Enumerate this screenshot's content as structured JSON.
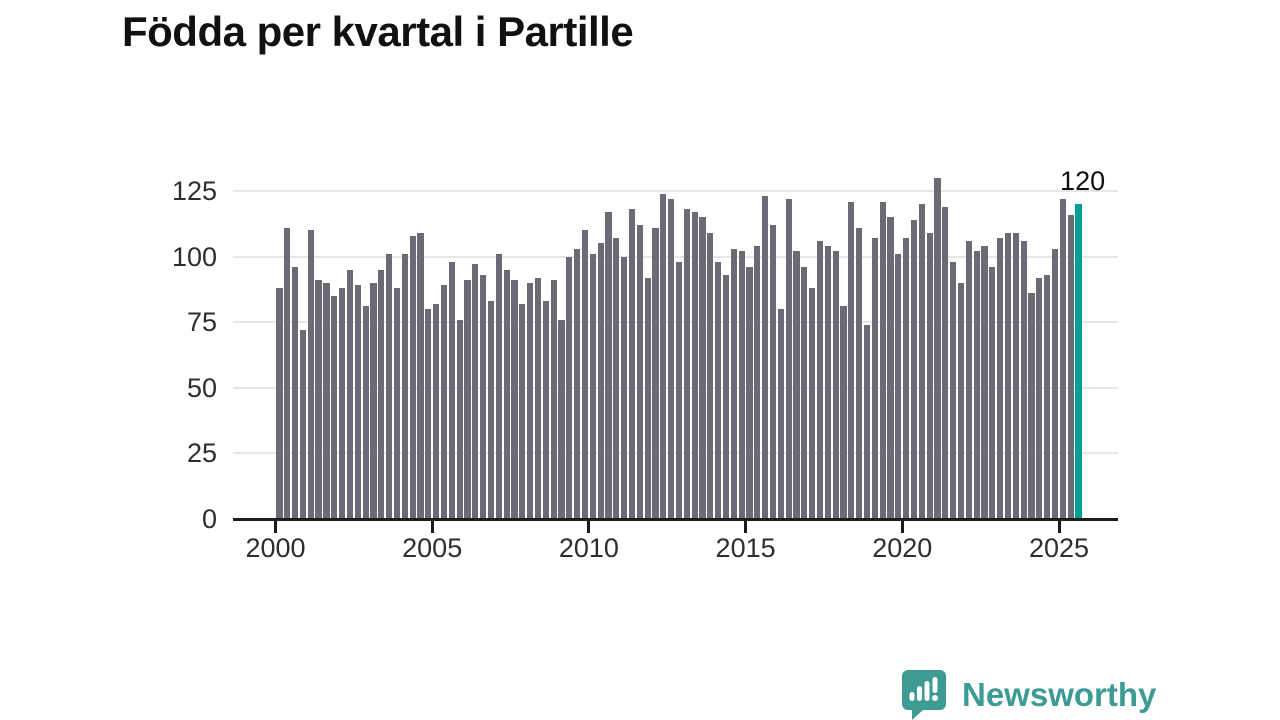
{
  "title": "Födda per kvartal i Partille",
  "chart_data": {
    "type": "bar",
    "title": "Födda per kvartal i Partille",
    "x_start": "2000-Q1",
    "x_end": "2025-Q3",
    "frequency": "quarterly",
    "values": [
      88,
      111,
      96,
      72,
      110,
      91,
      90,
      85,
      88,
      95,
      89,
      81,
      90,
      95,
      101,
      88,
      101,
      108,
      109,
      80,
      82,
      89,
      98,
      76,
      91,
      97,
      93,
      83,
      101,
      95,
      91,
      82,
      90,
      92,
      83,
      91,
      76,
      100,
      103,
      110,
      101,
      105,
      117,
      107,
      100,
      118,
      112,
      92,
      111,
      124,
      122,
      98,
      118,
      117,
      115,
      109,
      98,
      93,
      103,
      102,
      96,
      104,
      123,
      112,
      80,
      122,
      102,
      96,
      88,
      106,
      104,
      102,
      81,
      121,
      111,
      74,
      107,
      121,
      115,
      101,
      107,
      114,
      120,
      109,
      130,
      119,
      98,
      90,
      106,
      102,
      104,
      96,
      107,
      109,
      109,
      106,
      86,
      92,
      93,
      103,
      122,
      116,
      120
    ],
    "highlight_index": 102,
    "highlight_value": 120,
    "annotation_label": "120",
    "x_tick_labels": [
      "2000",
      "2005",
      "2010",
      "2015",
      "2020",
      "2025"
    ],
    "y_tick_labels": [
      "0",
      "25",
      "50",
      "75",
      "100",
      "125"
    ],
    "y_ticks": [
      0,
      25,
      50,
      75,
      100,
      125
    ],
    "ylim": [
      0,
      137
    ],
    "grid": "horizontal",
    "legend": "none",
    "colors": {
      "bar": "#6b6b76",
      "highlight": "#00a096",
      "axis": "#1c1c1c",
      "gridline": "#e7e7e7",
      "tick_text": "#2e2e2e",
      "title_text": "#111111"
    }
  },
  "branding": {
    "name": "Newsworthy",
    "color": "#3d9b93",
    "icon": "newsworthy-speech-bubble-chart-logo"
  }
}
